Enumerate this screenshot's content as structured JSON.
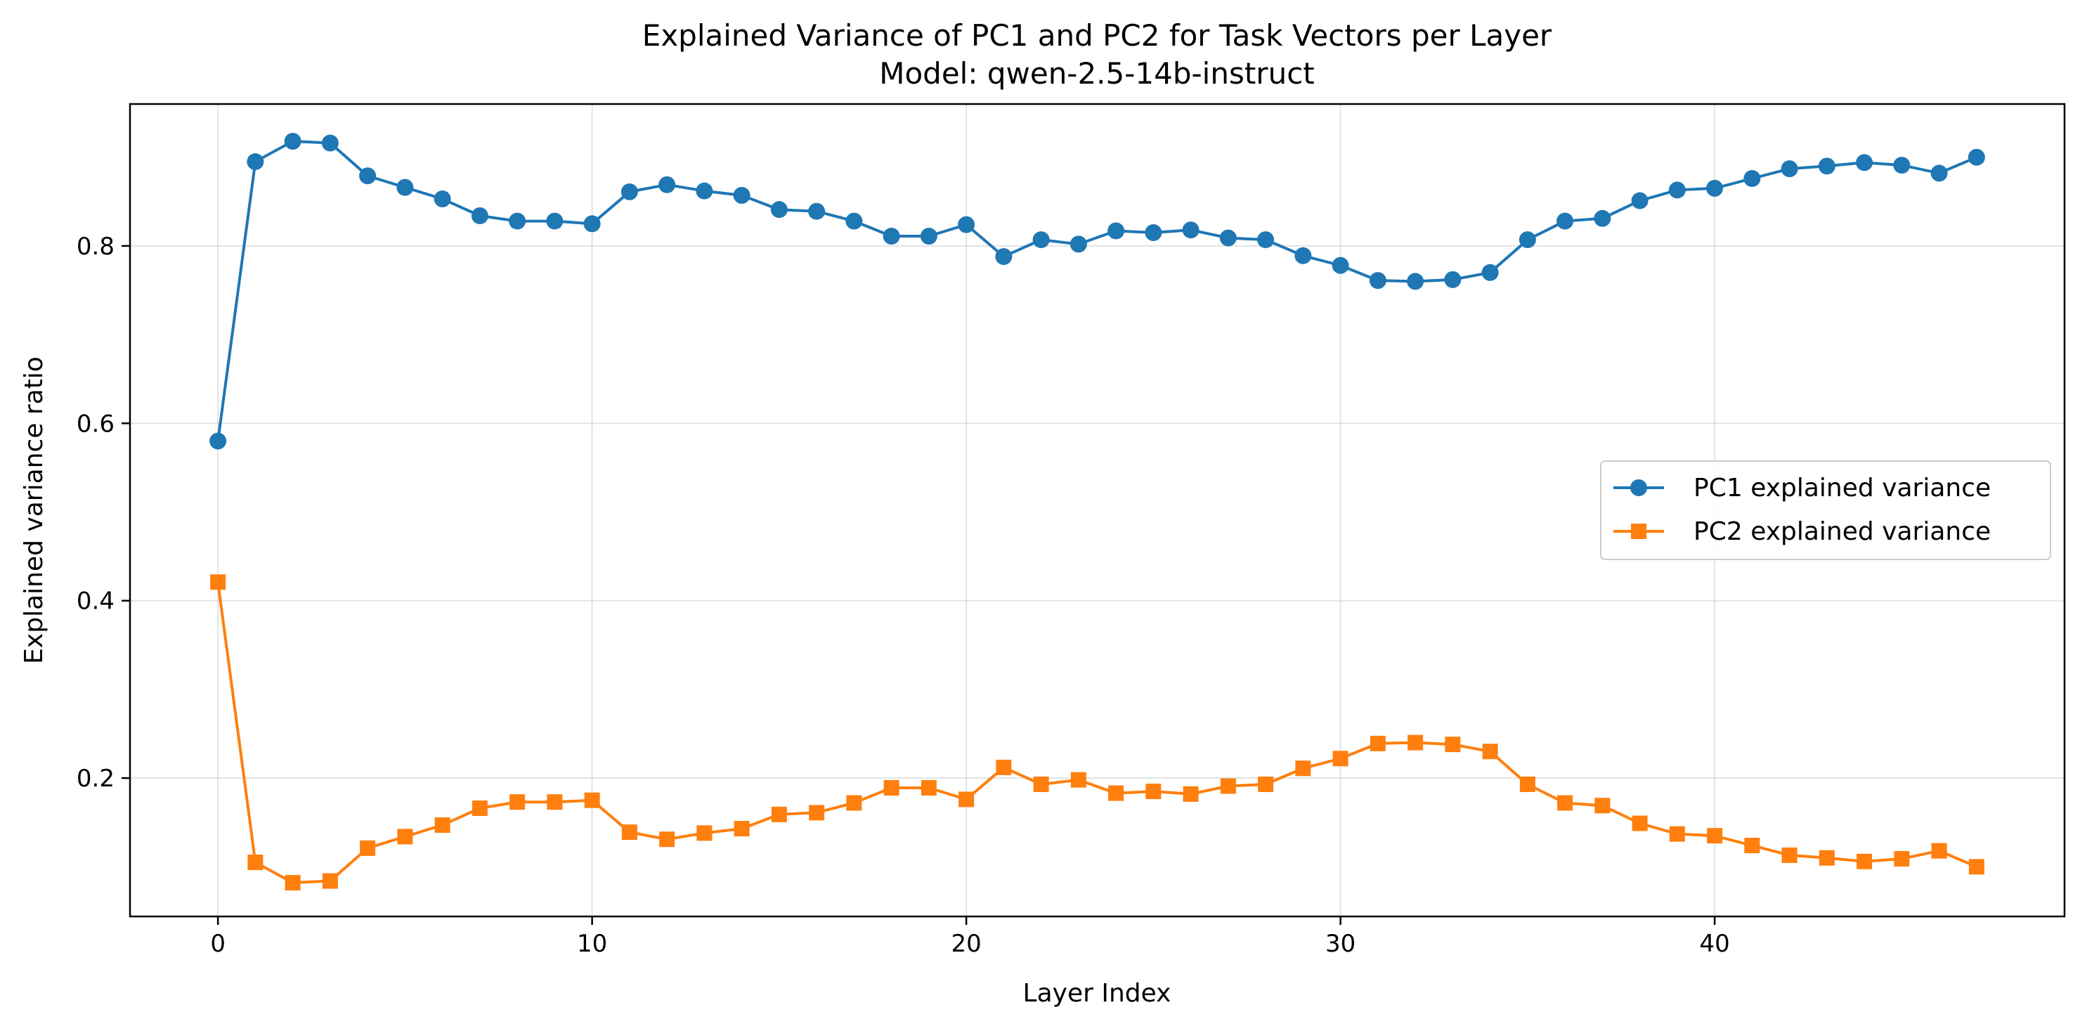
{
  "chart_data": {
    "type": "line",
    "title": "Explained Variance of PC1 and PC2 for Task Vectors per Layer",
    "subtitle": "Model: qwen-2.5-14b-instruct",
    "xlabel": "Layer Index",
    "ylabel": "Explained variance ratio",
    "xlim": [
      -2.35,
      49.35
    ],
    "ylim": [
      0.044,
      0.96
    ],
    "xticks": [
      0,
      10,
      20,
      30,
      40
    ],
    "yticks": [
      0.2,
      0.4,
      0.6,
      0.8
    ],
    "xtick_labels": [
      "0",
      "10",
      "20",
      "30",
      "40"
    ],
    "ytick_labels": [
      "0.2",
      "0.4",
      "0.6",
      "0.8"
    ],
    "grid": true,
    "legend_position": "center-right",
    "x": [
      0,
      1,
      2,
      3,
      4,
      5,
      6,
      7,
      8,
      9,
      10,
      11,
      12,
      13,
      14,
      15,
      16,
      17,
      18,
      19,
      20,
      21,
      22,
      23,
      24,
      25,
      26,
      27,
      28,
      29,
      30,
      31,
      32,
      33,
      34,
      35,
      36,
      37,
      38,
      39,
      40,
      41,
      42,
      43,
      44,
      45,
      46,
      47
    ],
    "series": [
      {
        "name": "PC1 explained variance",
        "color": "#1f77b4",
        "marker": "circle",
        "values": [
          0.58,
          0.895,
          0.918,
          0.916,
          0.879,
          0.866,
          0.853,
          0.834,
          0.828,
          0.828,
          0.825,
          0.861,
          0.869,
          0.862,
          0.857,
          0.841,
          0.839,
          0.828,
          0.811,
          0.811,
          0.824,
          0.788,
          0.807,
          0.802,
          0.817,
          0.815,
          0.818,
          0.809,
          0.807,
          0.789,
          0.778,
          0.761,
          0.76,
          0.762,
          0.77,
          0.807,
          0.828,
          0.831,
          0.851,
          0.863,
          0.865,
          0.876,
          0.887,
          0.89,
          0.894,
          0.891,
          0.882,
          0.9
        ]
      },
      {
        "name": "PC2 explained variance",
        "color": "#ff7f0e",
        "marker": "square",
        "values": [
          0.421,
          0.105,
          0.082,
          0.084,
          0.121,
          0.134,
          0.147,
          0.166,
          0.173,
          0.173,
          0.175,
          0.139,
          0.131,
          0.138,
          0.143,
          0.159,
          0.161,
          0.172,
          0.189,
          0.189,
          0.176,
          0.212,
          0.193,
          0.198,
          0.183,
          0.185,
          0.182,
          0.191,
          0.193,
          0.211,
          0.222,
          0.239,
          0.24,
          0.238,
          0.23,
          0.193,
          0.172,
          0.169,
          0.149,
          0.137,
          0.135,
          0.124,
          0.113,
          0.11,
          0.106,
          0.109,
          0.118,
          0.1
        ]
      }
    ]
  }
}
